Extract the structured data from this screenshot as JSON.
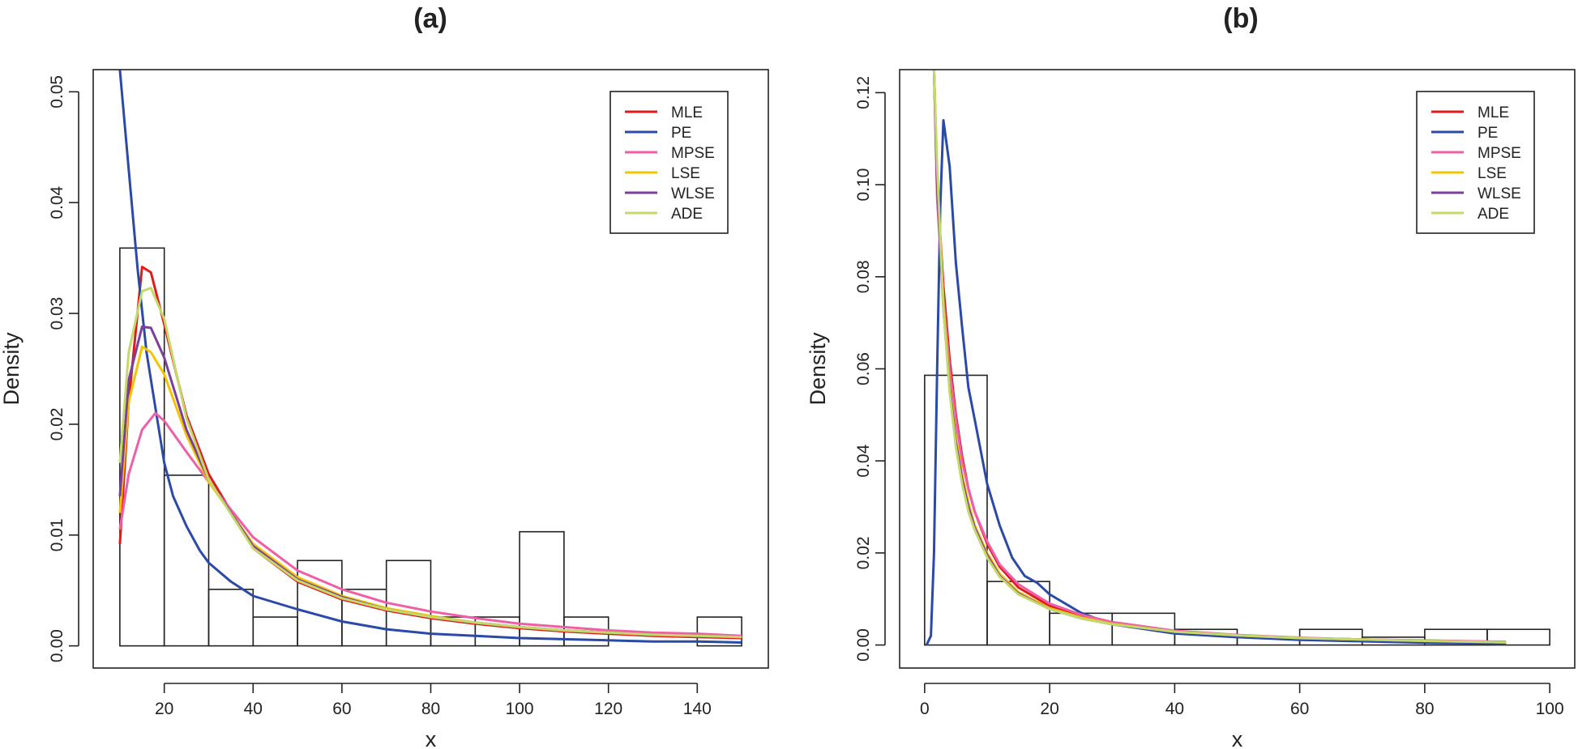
{
  "colors": {
    "MLE": "#e31a1c",
    "PE": "#2b4aa8",
    "MPSE": "#ee5fa7",
    "LSE": "#f2c500",
    "WLSE": "#7b3f9e",
    "ADE": "#c3d96a",
    "frame": "#222222",
    "hist": "#222222"
  },
  "chart_data": [
    {
      "type": "histogram-with-density-curves",
      "title": "(a)",
      "xlabel": "x",
      "ylabel": "Density",
      "xlim": [
        4,
        156
      ],
      "ylim": [
        -0.002,
        0.052
      ],
      "xticks": [
        20,
        40,
        60,
        80,
        100,
        120,
        140
      ],
      "yticks": [
        0.0,
        0.01,
        0.02,
        0.03,
        0.04,
        0.05
      ],
      "ytick_labels": [
        "0.00",
        "0.01",
        "0.02",
        "0.03",
        "0.04",
        "0.05"
      ],
      "legend_position": "top-right",
      "bins": [
        {
          "x0": 10,
          "x1": 20,
          "density": 0.0359
        },
        {
          "x0": 20,
          "x1": 30,
          "density": 0.0154
        },
        {
          "x0": 30,
          "x1": 40,
          "density": 0.0051
        },
        {
          "x0": 40,
          "x1": 50,
          "density": 0.0026
        },
        {
          "x0": 50,
          "x1": 60,
          "density": 0.0077
        },
        {
          "x0": 60,
          "x1": 70,
          "density": 0.0051
        },
        {
          "x0": 70,
          "x1": 80,
          "density": 0.0077
        },
        {
          "x0": 80,
          "x1": 90,
          "density": 0.0026
        },
        {
          "x0": 90,
          "x1": 100,
          "density": 0.0026
        },
        {
          "x0": 100,
          "x1": 110,
          "density": 0.0103
        },
        {
          "x0": 110,
          "x1": 120,
          "density": 0.0026
        },
        {
          "x0": 120,
          "x1": 130,
          "density": 0.0
        },
        {
          "x0": 130,
          "x1": 140,
          "density": 0.0
        },
        {
          "x0": 140,
          "x1": 150,
          "density": 0.0026
        }
      ],
      "series": [
        {
          "name": "MLE",
          "x": [
            10,
            12,
            15,
            17,
            20,
            25,
            30,
            40,
            50,
            60,
            70,
            80,
            90,
            100,
            110,
            120,
            130,
            140,
            150
          ],
          "y": [
            0.0092,
            0.022,
            0.0342,
            0.0337,
            0.029,
            0.0208,
            0.0155,
            0.0088,
            0.0058,
            0.0042,
            0.0032,
            0.0025,
            0.002,
            0.0016,
            0.0013,
            0.0011,
            0.0009,
            0.0008,
            0.0007
          ]
        },
        {
          "name": "PE",
          "x": [
            10,
            12,
            14,
            16,
            18,
            20,
            22,
            25,
            28,
            30,
            35,
            40,
            50,
            60,
            70,
            80,
            90,
            100,
            110,
            120,
            130,
            140,
            150
          ],
          "y": [
            0.052,
            0.043,
            0.034,
            0.0265,
            0.0215,
            0.0165,
            0.0135,
            0.0108,
            0.0086,
            0.0075,
            0.0058,
            0.0045,
            0.0033,
            0.0022,
            0.0015,
            0.0011,
            0.0009,
            0.0007,
            0.0006,
            0.0005,
            0.0004,
            0.0004,
            0.0003
          ]
        },
        {
          "name": "MPSE",
          "x": [
            10,
            12,
            15,
            18,
            20,
            25,
            30,
            40,
            50,
            60,
            70,
            80,
            90,
            100,
            110,
            120,
            130,
            140,
            150
          ],
          "y": [
            0.0105,
            0.0155,
            0.0195,
            0.021,
            0.0203,
            0.0175,
            0.0148,
            0.0098,
            0.0068,
            0.0051,
            0.0039,
            0.0031,
            0.0025,
            0.002,
            0.0017,
            0.0014,
            0.0012,
            0.0011,
            0.0009
          ]
        },
        {
          "name": "LSE",
          "x": [
            10,
            12,
            15,
            17,
            20,
            25,
            30,
            40,
            50,
            60,
            70,
            80,
            90,
            100,
            110,
            120,
            130,
            140,
            150
          ],
          "y": [
            0.012,
            0.022,
            0.027,
            0.0265,
            0.0245,
            0.019,
            0.0148,
            0.0092,
            0.0062,
            0.0045,
            0.0034,
            0.0027,
            0.0021,
            0.0017,
            0.0014,
            0.0012,
            0.001,
            0.0009,
            0.0008
          ]
        },
        {
          "name": "WLSE",
          "x": [
            10,
            12,
            15,
            17,
            20,
            25,
            30,
            40,
            50,
            60,
            70,
            80,
            90,
            100,
            110,
            120,
            130,
            140,
            150
          ],
          "y": [
            0.0135,
            0.024,
            0.0288,
            0.0287,
            0.026,
            0.0195,
            0.015,
            0.009,
            0.006,
            0.0044,
            0.0033,
            0.0026,
            0.0021,
            0.0017,
            0.0014,
            0.0012,
            0.001,
            0.0009,
            0.0008
          ]
        },
        {
          "name": "ADE",
          "x": [
            10,
            12,
            15,
            17,
            20,
            25,
            30,
            40,
            50,
            60,
            70,
            80,
            90,
            100,
            110,
            120,
            130,
            140,
            150
          ],
          "y": [
            0.0165,
            0.0265,
            0.032,
            0.0323,
            0.0295,
            0.0205,
            0.015,
            0.0088,
            0.0059,
            0.0043,
            0.0033,
            0.0026,
            0.0021,
            0.0017,
            0.0014,
            0.0012,
            0.001,
            0.0009,
            0.0008
          ]
        }
      ],
      "legend": [
        "MLE",
        "PE",
        "MPSE",
        "LSE",
        "WLSE",
        "ADE"
      ]
    },
    {
      "type": "histogram-with-density-curves",
      "title": "(b)",
      "xlabel": "x",
      "ylabel": "Density",
      "xlim": [
        -4,
        104
      ],
      "ylim": [
        -0.005,
        0.125
      ],
      "xticks": [
        0,
        20,
        40,
        60,
        80,
        100
      ],
      "yticks": [
        0.0,
        0.02,
        0.04,
        0.06,
        0.08,
        0.1,
        0.12
      ],
      "ytick_labels": [
        "0.00",
        "0.02",
        "0.04",
        "0.06",
        "0.08",
        "0.10",
        "0.12"
      ],
      "legend_position": "top-right",
      "bins": [
        {
          "x0": 0,
          "x1": 10,
          "density": 0.0586
        },
        {
          "x0": 10,
          "x1": 20,
          "density": 0.0138
        },
        {
          "x0": 20,
          "x1": 30,
          "density": 0.0069
        },
        {
          "x0": 30,
          "x1": 40,
          "density": 0.0069
        },
        {
          "x0": 40,
          "x1": 50,
          "density": 0.0034
        },
        {
          "x0": 50,
          "x1": 60,
          "density": 0.0017
        },
        {
          "x0": 60,
          "x1": 70,
          "density": 0.0034
        },
        {
          "x0": 70,
          "x1": 80,
          "density": 0.0017
        },
        {
          "x0": 80,
          "x1": 90,
          "density": 0.0034
        },
        {
          "x0": 90,
          "x1": 100,
          "density": 0.0034
        }
      ],
      "series": [
        {
          "name": "MLE",
          "x": [
            1.5,
            2,
            3,
            4,
            5,
            6,
            7,
            8,
            10,
            12,
            15,
            20,
            25,
            30,
            40,
            50,
            60,
            70,
            80,
            93
          ],
          "y": [
            0.125,
            0.1,
            0.078,
            0.062,
            0.05,
            0.041,
            0.034,
            0.029,
            0.022,
            0.017,
            0.0125,
            0.0085,
            0.0062,
            0.0047,
            0.0029,
            0.0021,
            0.0015,
            0.0012,
            0.0009,
            0.0006
          ]
        },
        {
          "name": "PE",
          "x": [
            0.3,
            1,
            1.5,
            2,
            2.5,
            3,
            4,
            5,
            6,
            7,
            8,
            9,
            10,
            12,
            14,
            16,
            18,
            20,
            25,
            30,
            40,
            50,
            60,
            70,
            80,
            93
          ],
          "y": [
            0.0,
            0.002,
            0.02,
            0.06,
            0.095,
            0.114,
            0.104,
            0.083,
            0.069,
            0.056,
            0.049,
            0.042,
            0.035,
            0.026,
            0.019,
            0.015,
            0.0135,
            0.011,
            0.007,
            0.0045,
            0.0025,
            0.0017,
            0.0011,
            0.0008,
            0.0005,
            0.0003
          ]
        },
        {
          "name": "MPSE",
          "x": [
            1.5,
            2,
            3,
            4,
            5,
            6,
            7,
            8,
            10,
            12,
            15,
            20,
            25,
            30,
            40,
            50,
            60,
            70,
            80,
            93
          ],
          "y": [
            0.125,
            0.097,
            0.075,
            0.06,
            0.049,
            0.04,
            0.034,
            0.029,
            0.0225,
            0.0175,
            0.0132,
            0.009,
            0.0066,
            0.005,
            0.0031,
            0.0022,
            0.0016,
            0.0012,
            0.001,
            0.0007
          ]
        },
        {
          "name": "LSE",
          "x": [
            1.5,
            2,
            3,
            4,
            5,
            6,
            7,
            8,
            10,
            12,
            15,
            20,
            25,
            30,
            40,
            50,
            60,
            70,
            80,
            93
          ],
          "y": [
            0.125,
            0.102,
            0.074,
            0.057,
            0.045,
            0.037,
            0.031,
            0.026,
            0.02,
            0.0155,
            0.0115,
            0.008,
            0.006,
            0.0046,
            0.0029,
            0.0021,
            0.0015,
            0.0012,
            0.0009,
            0.0006
          ]
        },
        {
          "name": "WLSE",
          "x": [
            1.5,
            2,
            3,
            4,
            5,
            6,
            7,
            8,
            10,
            12,
            15,
            20,
            25,
            30,
            40,
            50,
            60,
            70,
            80,
            93
          ],
          "y": [
            0.125,
            0.1,
            0.073,
            0.056,
            0.044,
            0.036,
            0.03,
            0.0255,
            0.0195,
            0.015,
            0.0112,
            0.0078,
            0.0058,
            0.0045,
            0.0029,
            0.0021,
            0.0015,
            0.0012,
            0.0009,
            0.0006
          ]
        },
        {
          "name": "ADE",
          "x": [
            1.5,
            2,
            3,
            4,
            5,
            6,
            7,
            8,
            10,
            12,
            15,
            20,
            25,
            30,
            40,
            50,
            60,
            70,
            80,
            93
          ],
          "y": [
            0.125,
            0.104,
            0.073,
            0.055,
            0.043,
            0.035,
            0.029,
            0.025,
            0.019,
            0.0148,
            0.011,
            0.0078,
            0.0058,
            0.0045,
            0.0029,
            0.0021,
            0.0015,
            0.0012,
            0.0009,
            0.0006
          ]
        }
      ],
      "legend": [
        "MLE",
        "PE",
        "MPSE",
        "LSE",
        "WLSE",
        "ADE"
      ]
    }
  ]
}
